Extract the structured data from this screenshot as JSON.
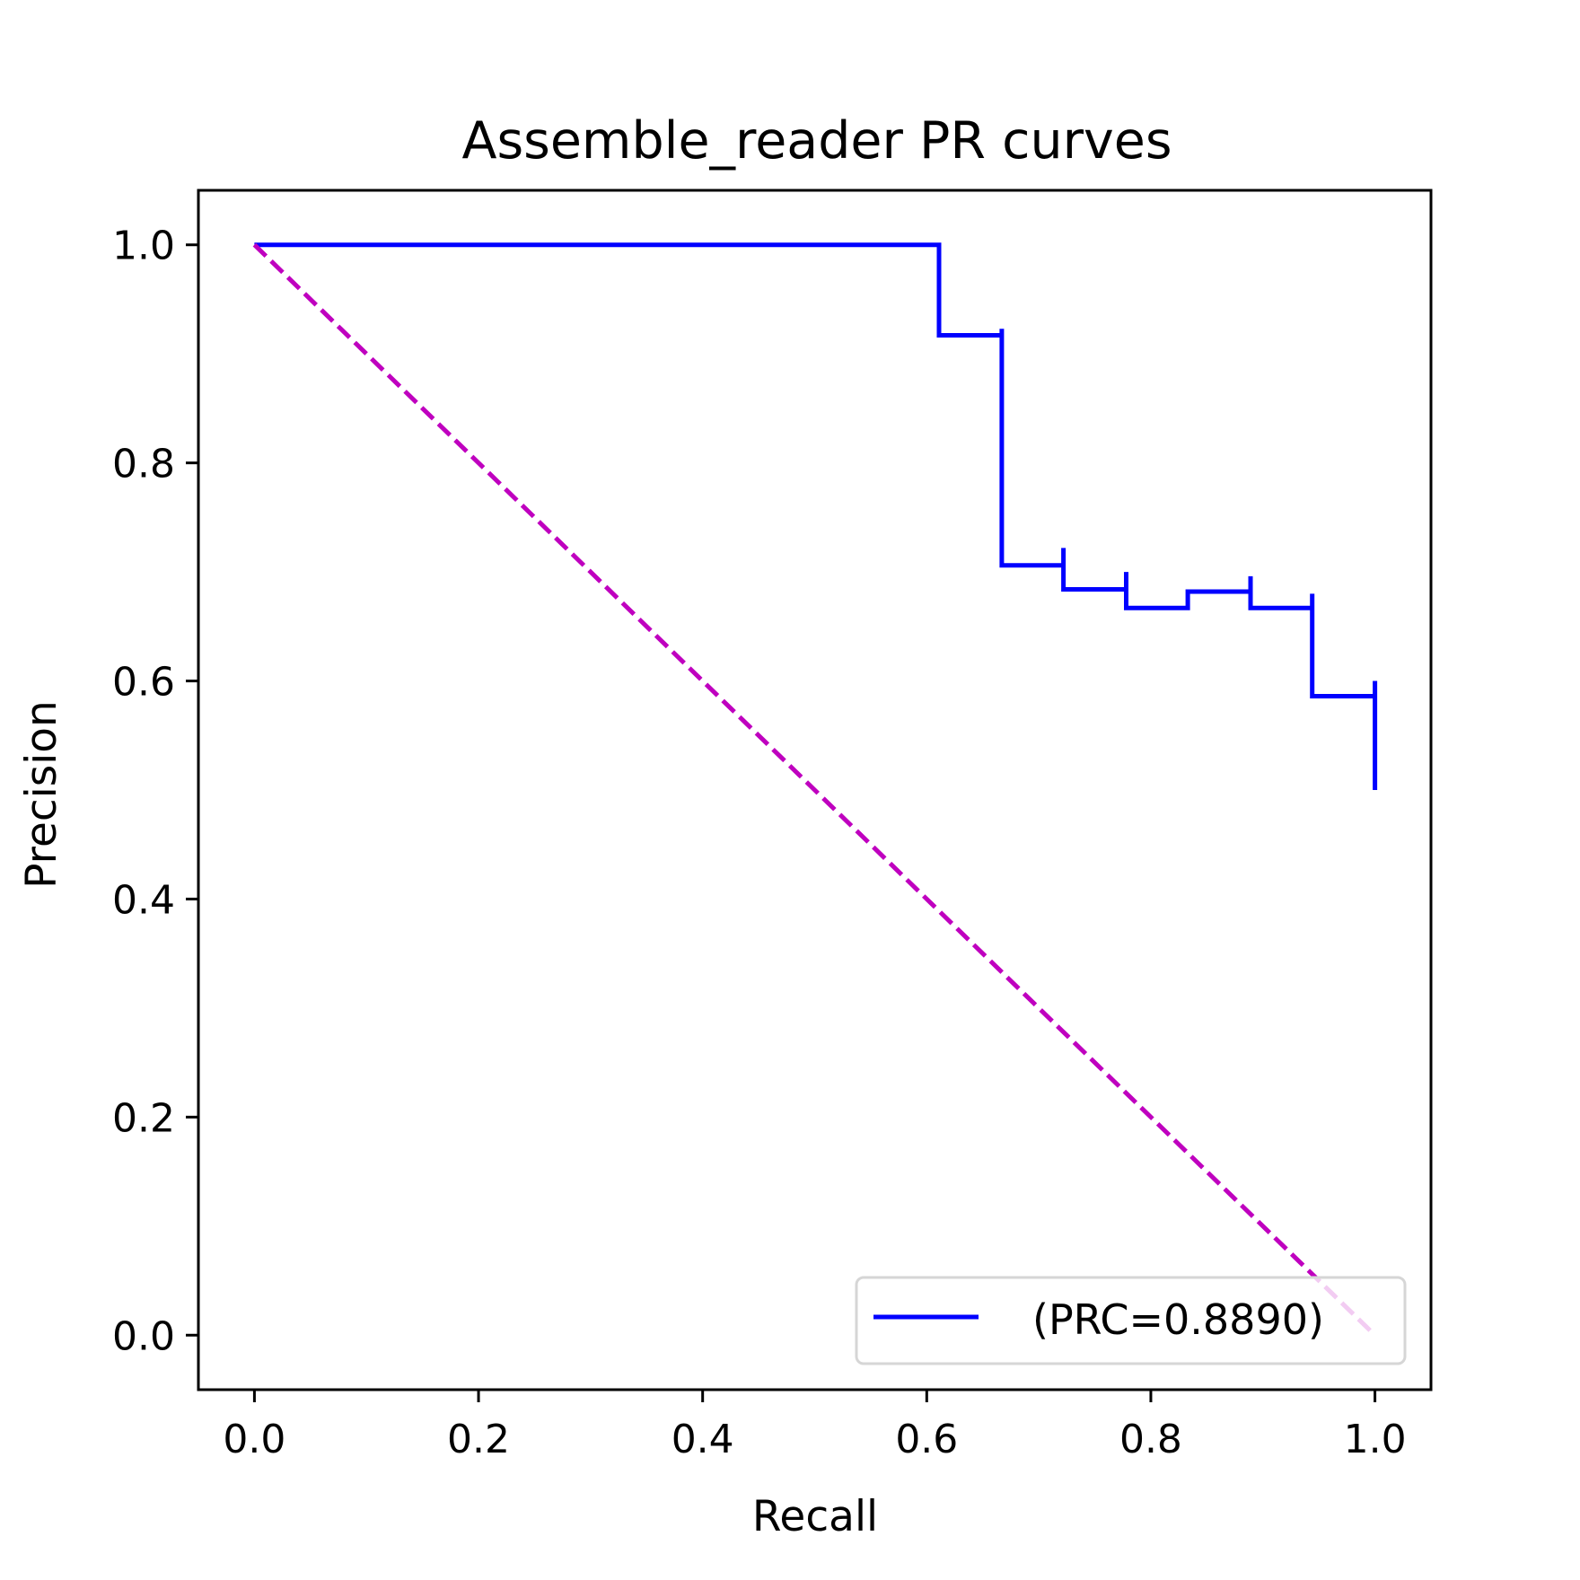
{
  "chart_data": {
    "type": "line",
    "title": "Assemble_reader PR curves",
    "xlabel": "Recall",
    "ylabel": "Precision",
    "xlim": [
      -0.05,
      1.05
    ],
    "ylim": [
      -0.05,
      1.05
    ],
    "xticks": [
      "0.0",
      "0.2",
      "0.4",
      "0.6",
      "0.8",
      "1.0"
    ],
    "yticks": [
      "0.0",
      "0.2",
      "0.4",
      "0.6",
      "0.8",
      "1.0"
    ],
    "grid": false,
    "legend_position": "lower-right",
    "series": [
      {
        "name": "(PRC=0.8890)",
        "color": "#0000ff",
        "style": "step",
        "points": [
          [
            0.0,
            1.0
          ],
          [
            0.611,
            1.0
          ],
          [
            0.611,
            0.917
          ],
          [
            0.667,
            0.917
          ],
          [
            0.667,
            0.923
          ],
          [
            0.667,
            0.706
          ],
          [
            0.722,
            0.706
          ],
          [
            0.722,
            0.722
          ],
          [
            0.722,
            0.684
          ],
          [
            0.778,
            0.684
          ],
          [
            0.778,
            0.7
          ],
          [
            0.778,
            0.667
          ],
          [
            0.833,
            0.667
          ],
          [
            0.833,
            0.682
          ],
          [
            0.889,
            0.682
          ],
          [
            0.889,
            0.696
          ],
          [
            0.889,
            0.667
          ],
          [
            0.944,
            0.667
          ],
          [
            0.944,
            0.68
          ],
          [
            0.944,
            0.586
          ],
          [
            1.0,
            0.586
          ],
          [
            1.0,
            0.6
          ],
          [
            1.0,
            0.5
          ]
        ]
      },
      {
        "color": "#bf00bf",
        "style": "dashed",
        "points": [
          [
            0.0,
            1.0
          ],
          [
            1.0,
            0.0
          ]
        ]
      }
    ]
  }
}
